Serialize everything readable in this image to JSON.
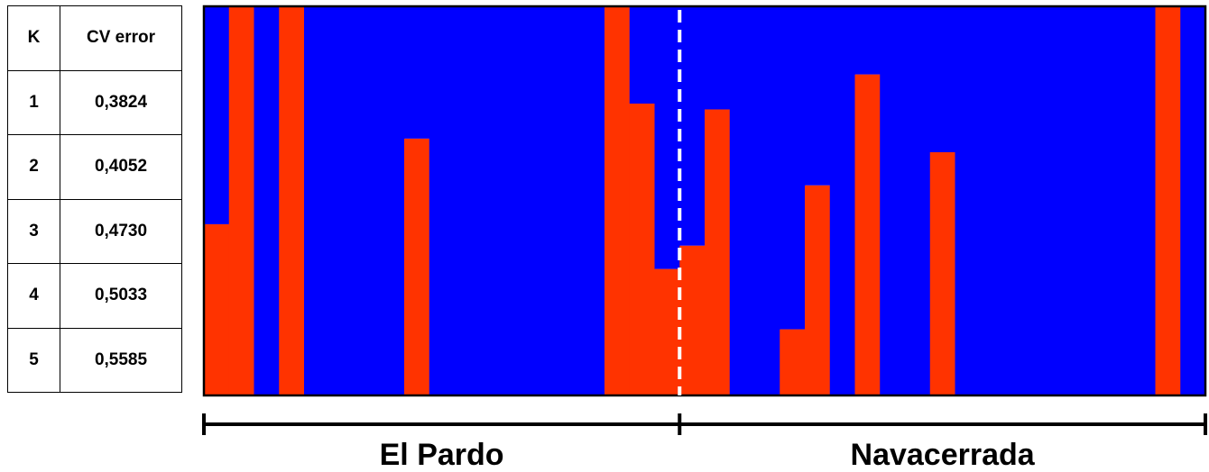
{
  "table": {
    "headers": [
      "K",
      "CV error"
    ],
    "rows": [
      [
        "1",
        "0,3824"
      ],
      [
        "2",
        "0,4052"
      ],
      [
        "3",
        "0,4730"
      ],
      [
        "4",
        "0,5033"
      ],
      [
        "5",
        "0,5585"
      ]
    ]
  },
  "chart_data": {
    "type": "bar",
    "stacked": true,
    "ylim": [
      0,
      1
    ],
    "series": [
      {
        "color": "#ff3300",
        "values": [
          0.44,
          1.0,
          0.0,
          1.0,
          0,
          0,
          0,
          0,
          0.66,
          0,
          0,
          0,
          0,
          0,
          0,
          0,
          1.0,
          0.75,
          0.325,
          0.385,
          0.735,
          0,
          0,
          0.17,
          0.54,
          0,
          0.825,
          0,
          0,
          0.625,
          0,
          0,
          0,
          0,
          0,
          0,
          0,
          0,
          1.0,
          0
        ]
      },
      {
        "color": "#0000ff",
        "values": [
          0.56,
          0.0,
          1.0,
          0.0,
          1,
          1,
          1,
          1,
          0.34,
          1,
          1,
          1,
          1,
          1,
          1,
          1,
          0.0,
          0.25,
          0.675,
          0.615,
          0.265,
          1,
          1,
          0.83,
          0.46,
          1,
          0.175,
          1,
          1,
          0.375,
          1,
          1,
          1,
          1,
          1,
          1,
          1,
          1,
          0.0,
          1
        ]
      }
    ],
    "divider_after_index": 18,
    "groups": [
      {
        "label": "El Pardo",
        "start": 0,
        "end": 18
      },
      {
        "label": "Navacerrada",
        "start": 19,
        "end": 39
      }
    ]
  }
}
